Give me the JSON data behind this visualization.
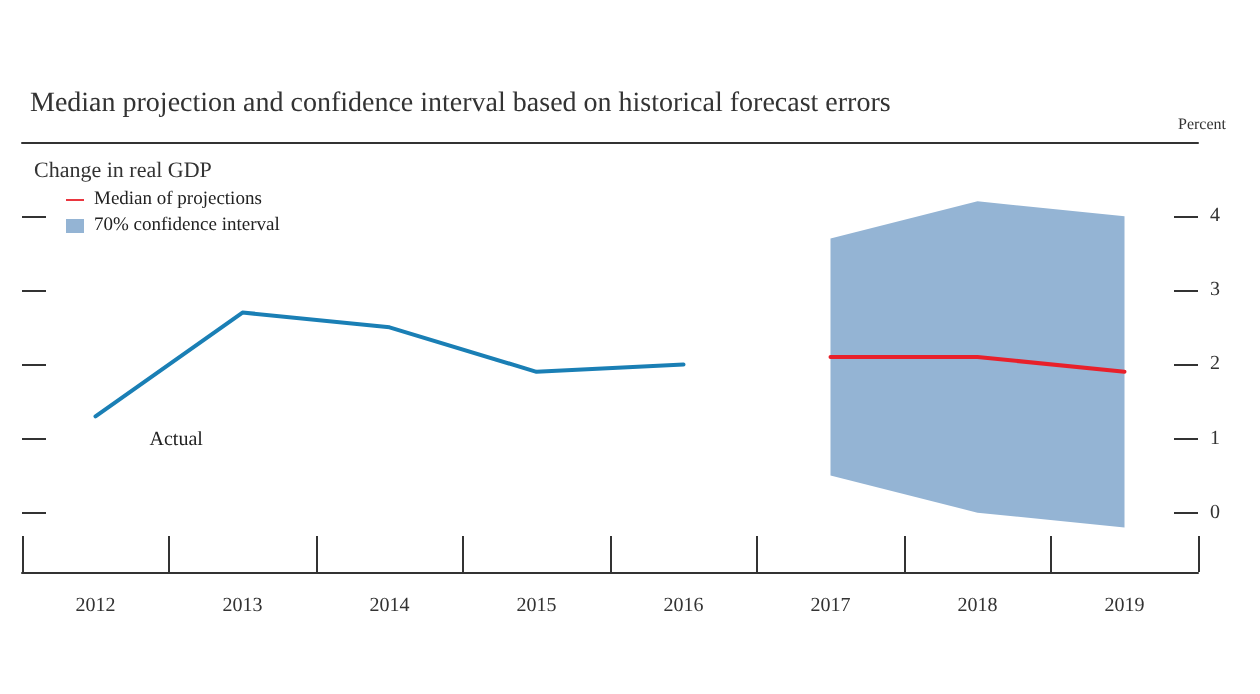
{
  "chart_data": {
    "type": "line",
    "title": "Median projection and confidence interval based on historical forecast errors",
    "subtitle": "Change in real GDP",
    "ylabel": "Percent",
    "categories": [
      "2012",
      "2013",
      "2014",
      "2015",
      "2016",
      "2017",
      "2018",
      "2019"
    ],
    "series": [
      {
        "name": "Actual",
        "color": "#1a7fb5",
        "values": [
          1.3,
          2.7,
          2.5,
          1.9,
          2.0,
          null,
          null,
          null
        ]
      },
      {
        "name": "Median of projections",
        "color": "#e8202a",
        "values": [
          null,
          null,
          null,
          null,
          null,
          2.1,
          2.1,
          1.9
        ]
      },
      {
        "name": "70% confidence interval",
        "type": "area",
        "color": "#94b4d4",
        "values": [
          null,
          null,
          null,
          null,
          null,
          null,
          null,
          null
        ],
        "lower": [
          null,
          null,
          null,
          null,
          null,
          0.5,
          0.0,
          -0.2
        ],
        "upper": [
          null,
          null,
          null,
          null,
          null,
          3.7,
          4.2,
          4.0
        ]
      }
    ],
    "ylim": [
      -0.8,
      5
    ],
    "yticks": [
      0,
      1,
      2,
      3,
      4
    ],
    "grid": false,
    "legend": "top left",
    "marker": "none",
    "line_style": "solid"
  }
}
